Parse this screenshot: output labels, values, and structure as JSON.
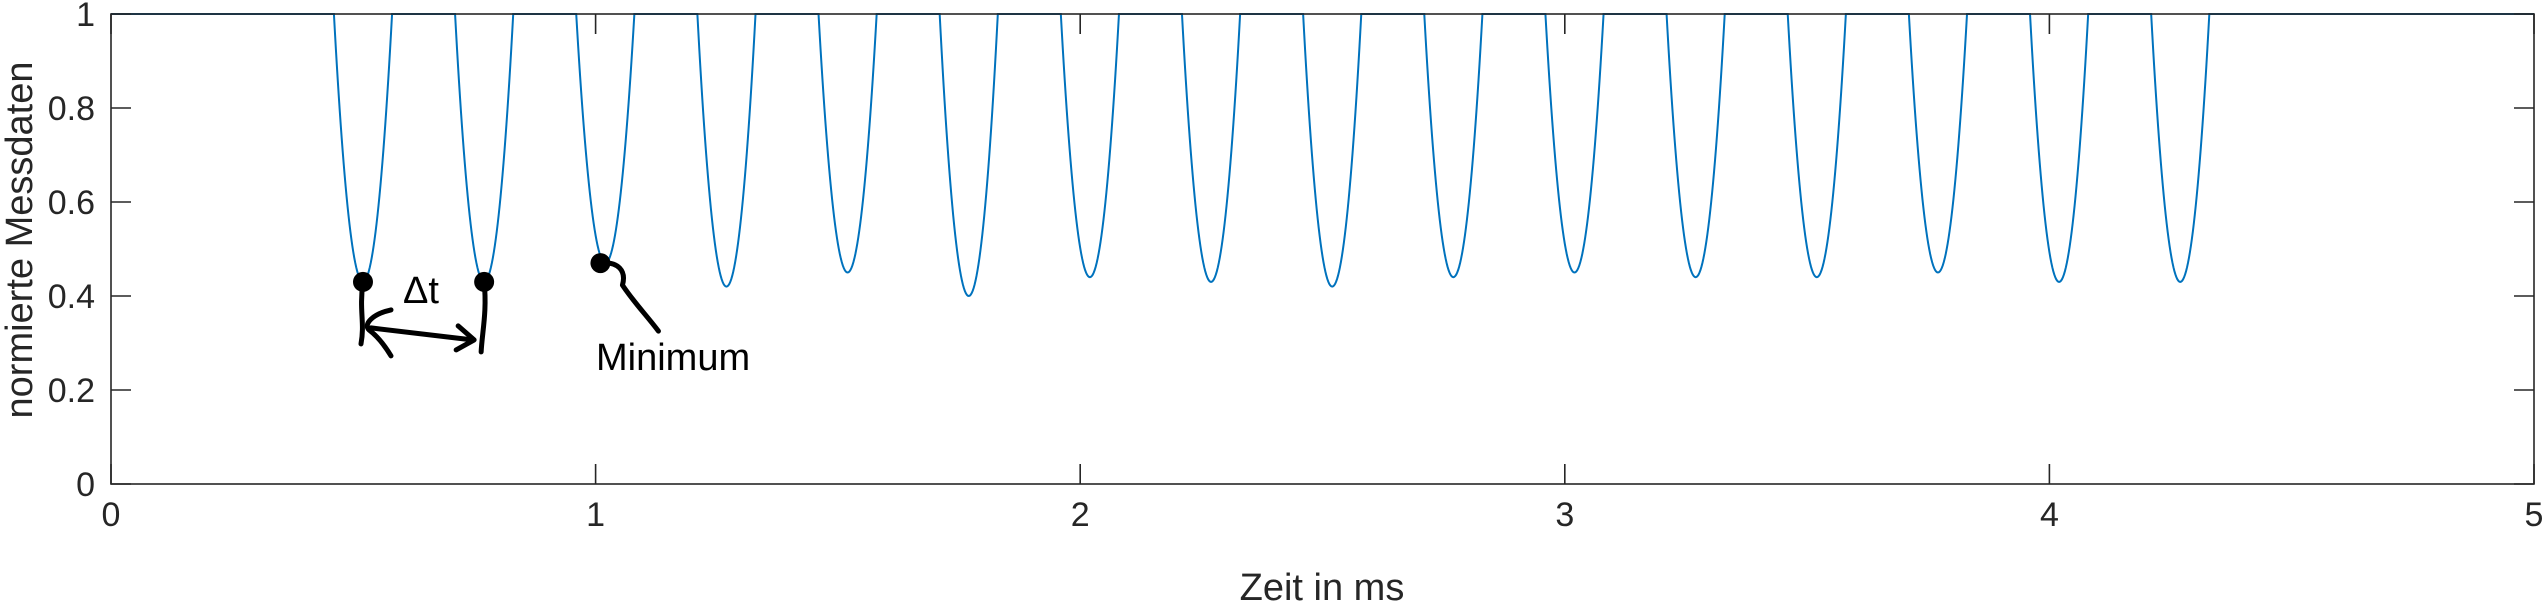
{
  "chart_data": {
    "type": "line",
    "title": "",
    "xlabel": "Zeit in ms",
    "ylabel": "normierte Messdaten",
    "xlim": [
      0,
      5
    ],
    "ylim": [
      0,
      1
    ],
    "xticks": [
      0,
      1,
      2,
      3,
      4,
      5
    ],
    "yticks": [
      0,
      0.2,
      0.4,
      0.6,
      0.8,
      1
    ],
    "xtick_labels": [
      "0",
      "1",
      "2",
      "3",
      "4",
      "5"
    ],
    "ytick_labels": [
      "0",
      "0.2",
      "0.4",
      "0.6",
      "0.8",
      "1"
    ],
    "grid": false,
    "line_color": "#0072BD",
    "series": [
      {
        "baseline": 1.0,
        "dips": [
          {
            "start": 0.46,
            "end": 0.58,
            "min": 0.43
          },
          {
            "start": 0.71,
            "end": 0.83,
            "min": 0.43
          },
          {
            "start": 0.96,
            "end": 1.08,
            "min": 0.47
          },
          {
            "start": 1.21,
            "end": 1.33,
            "min": 0.42
          },
          {
            "start": 1.46,
            "end": 1.58,
            "min": 0.45
          },
          {
            "start": 1.71,
            "end": 1.83,
            "min": 0.4
          },
          {
            "start": 1.96,
            "end": 2.08,
            "min": 0.44
          },
          {
            "start": 2.21,
            "end": 2.33,
            "min": 0.43
          },
          {
            "start": 2.46,
            "end": 2.58,
            "min": 0.42
          },
          {
            "start": 2.71,
            "end": 2.83,
            "min": 0.44
          },
          {
            "start": 2.96,
            "end": 3.08,
            "min": 0.45
          },
          {
            "start": 3.21,
            "end": 3.33,
            "min": 0.44
          },
          {
            "start": 3.46,
            "end": 3.58,
            "min": 0.44
          },
          {
            "start": 3.71,
            "end": 3.83,
            "min": 0.45
          },
          {
            "start": 3.96,
            "end": 4.08,
            "min": 0.43
          },
          {
            "start": 4.21,
            "end": 4.33,
            "min": 0.43
          }
        ]
      }
    ],
    "annotations": [
      {
        "label": "Δt",
        "marked_points": [
          {
            "x": 0.52,
            "y": 0.43
          },
          {
            "x": 0.77,
            "y": 0.43
          }
        ]
      },
      {
        "label": "Minimum",
        "marked_points": [
          {
            "x": 1.01,
            "y": 0.47
          }
        ]
      }
    ]
  }
}
